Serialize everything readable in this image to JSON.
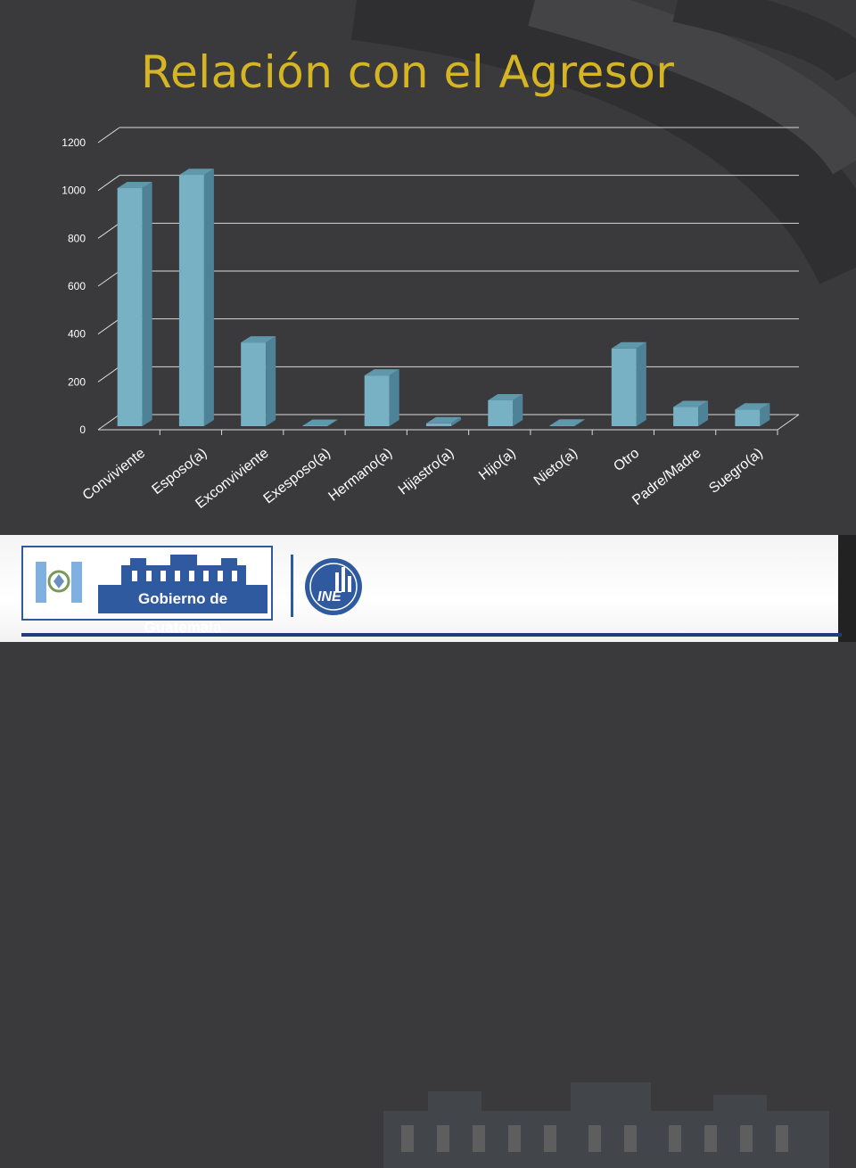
{
  "title": "Relación con el Agresor",
  "chart_data": {
    "type": "bar",
    "style": "3d",
    "categories": [
      "Conviviente",
      "Esposo(a)",
      "Exconviviente",
      "Exesposo(a)",
      "Hermano(a)",
      "Hijastro(a)",
      "Hijo(a)",
      "Nieto(a)",
      "Otro",
      "Padre/Madre",
      "Suegro(a)"
    ],
    "values": [
      995,
      1050,
      350,
      2,
      212,
      12,
      108,
      3,
      325,
      80,
      70
    ],
    "yticks": [
      "0",
      "200",
      "400",
      "600",
      "800",
      "1000",
      "1200"
    ],
    "ylim": [
      0,
      1200
    ],
    "grid": true,
    "bar_color": "#78b0c4",
    "bar_side_color": "#4e8296",
    "bar_top_color": "#5f97ab"
  },
  "footer": {
    "gov_label": "Gobierno de Guatemala",
    "ine_label": "INE"
  },
  "colors": {
    "background": "#3a3a3c",
    "title": "#d5b523",
    "brand_blue": "#2f5aa0"
  }
}
